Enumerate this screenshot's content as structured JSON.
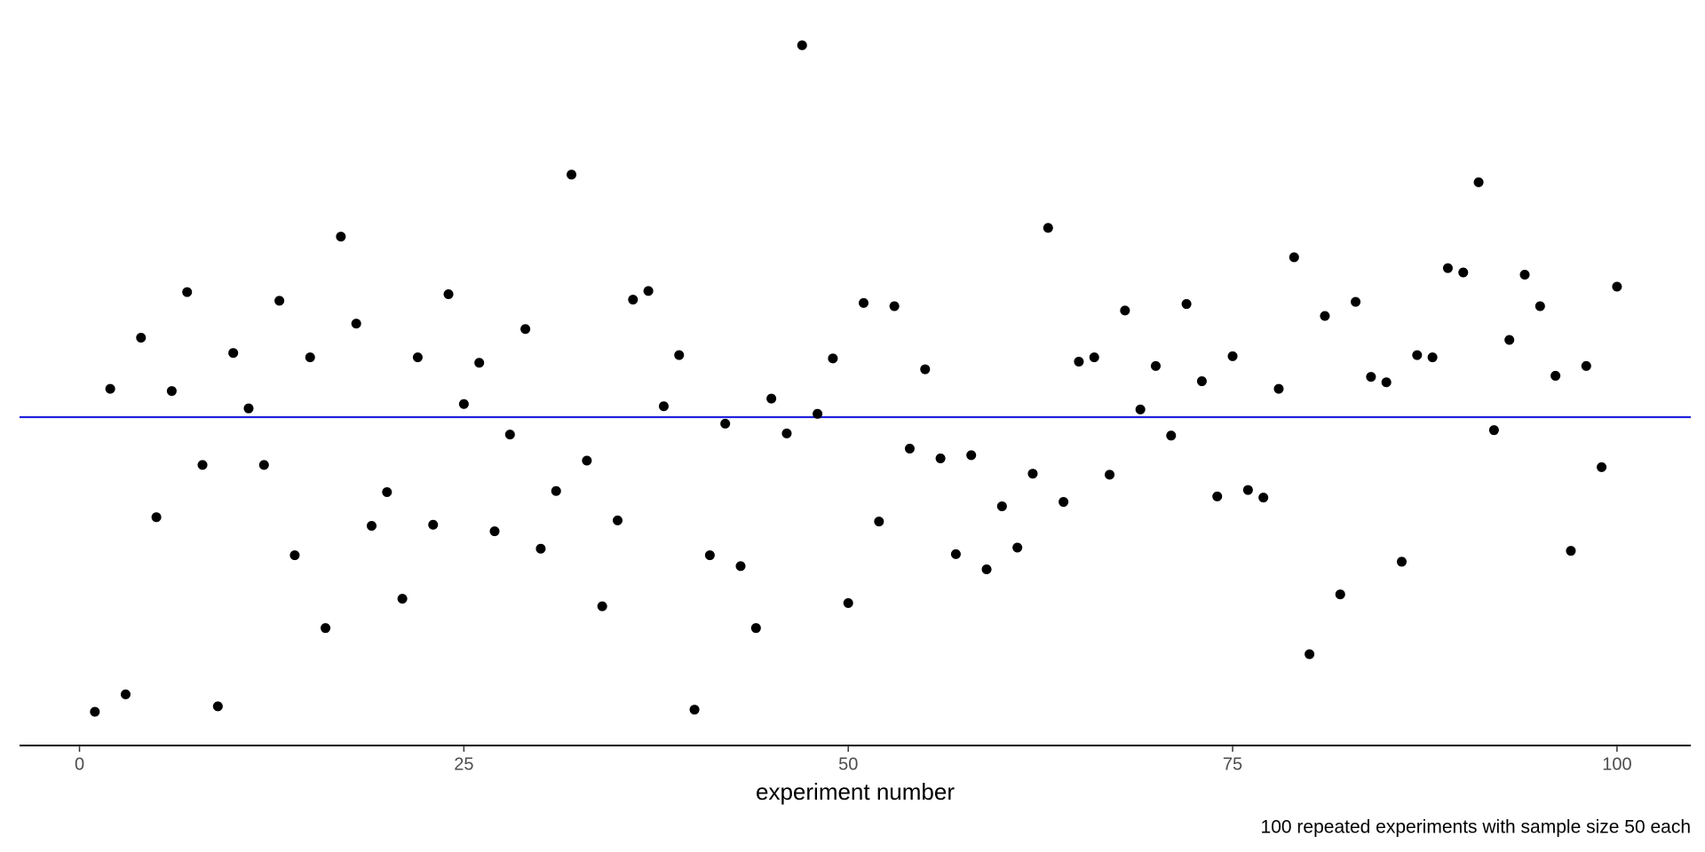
{
  "chart_data": {
    "type": "scatter",
    "x_label": "experiment number",
    "caption": "100 repeated experiments with sample size 50 each",
    "x": [
      1,
      2,
      3,
      4,
      5,
      6,
      7,
      8,
      9,
      10,
      11,
      12,
      13,
      14,
      15,
      16,
      17,
      18,
      19,
      20,
      21,
      22,
      23,
      24,
      25,
      26,
      27,
      28,
      29,
      30,
      31,
      32,
      33,
      34,
      35,
      36,
      37,
      38,
      39,
      40,
      41,
      42,
      43,
      44,
      45,
      46,
      47,
      48,
      49,
      50,
      51,
      52,
      53,
      54,
      55,
      56,
      57,
      58,
      59,
      60,
      61,
      62,
      63,
      64,
      65,
      66,
      67,
      68,
      69,
      70,
      71,
      72,
      73,
      74,
      75,
      76,
      77,
      78,
      79,
      80,
      81,
      82,
      83,
      84,
      85,
      86,
      87,
      88,
      89,
      90,
      91,
      92,
      93,
      94,
      95,
      96,
      97,
      98,
      99,
      100
    ],
    "values": [
      -2.71,
      0.26,
      -2.55,
      0.73,
      -0.92,
      0.24,
      1.15,
      -0.44,
      -2.66,
      0.59,
      0.08,
      -0.44,
      1.07,
      -1.27,
      0.55,
      -1.94,
      1.66,
      0.86,
      -1.0,
      -0.69,
      -1.67,
      0.55,
      -0.99,
      1.13,
      0.12,
      0.5,
      -1.05,
      -0.16,
      0.81,
      -1.21,
      -0.68,
      2.23,
      -0.4,
      -1.74,
      -0.95,
      1.08,
      1.16,
      0.1,
      0.57,
      -2.69,
      -1.27,
      -0.06,
      -1.37,
      -1.94,
      0.17,
      -0.15,
      3.42,
      0.03,
      0.54,
      -1.71,
      1.05,
      -0.96,
      1.02,
      -0.29,
      0.44,
      -0.38,
      -1.26,
      -0.35,
      -1.4,
      -0.82,
      -1.2,
      -0.52,
      1.74,
      -0.78,
      0.51,
      0.55,
      -0.53,
      0.98,
      0.07,
      0.47,
      -0.17,
      1.04,
      0.33,
      -0.73,
      0.56,
      -0.67,
      -0.74,
      0.26,
      1.47,
      -2.18,
      0.93,
      -1.63,
      1.06,
      0.37,
      0.32,
      -1.33,
      0.57,
      0.55,
      1.37,
      1.33,
      2.16,
      -0.12,
      0.71,
      1.31,
      1.02,
      0.38,
      -1.23,
      0.47,
      -0.46,
      1.2
    ],
    "color": "#000000",
    "reference_line": {
      "value": 0,
      "color": "#2222dd"
    },
    "xlim": [
      -3.9,
      104.8
    ],
    "xticks": [
      0,
      25,
      50,
      75,
      100
    ],
    "ylim": [
      -3.02,
      3.64
    ]
  }
}
